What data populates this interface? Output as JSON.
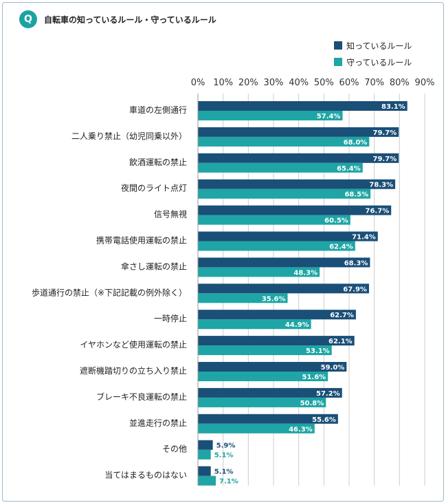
{
  "header": {
    "badge": "Q",
    "title": "自転車の知っているルール・守っているルール"
  },
  "colors": {
    "known": "#1a4f78",
    "kept": "#1fa5a5",
    "grid": "#cccccc",
    "badge": "#1aa3a3"
  },
  "chart_data": {
    "type": "bar",
    "orientation": "horizontal",
    "title": "自転車の知っているルール・守っているルール",
    "xlim": [
      0,
      90
    ],
    "ticks": [
      "0%",
      "10%",
      "20%",
      "30%",
      "40%",
      "50%",
      "60%",
      "70%",
      "80%",
      "90%"
    ],
    "grid": true,
    "legend_position": "top-right",
    "categories": [
      "車道の左側通行",
      "二人乗り禁止（幼児同乗以外）",
      "飲酒運転の禁止",
      "夜間のライト点灯",
      "信号無視",
      "携帯電話使用運転の禁止",
      "傘さし運転の禁止",
      "歩道通行の禁止（※下記記載の例外除く）",
      "一時停止",
      "イヤホンなど使用運転の禁止",
      "遮断機踏切りの立ち入り禁止",
      "ブレーキ不良運転の禁止",
      "並進走行の禁止",
      "その他",
      "当てはまるものはない"
    ],
    "series": [
      {
        "name": "知っているルール",
        "values": [
          83.1,
          79.7,
          79.7,
          78.3,
          76.7,
          71.4,
          68.3,
          67.9,
          62.7,
          62.1,
          59.0,
          57.2,
          55.6,
          5.9,
          5.1
        ],
        "labels": [
          "83.1%",
          "79.7%",
          "79.7%",
          "78.3%",
          "76.7%",
          "71.4%",
          "68.3%",
          "67.9%",
          "62.7%",
          "62.1%",
          "59.0%",
          "57.2%",
          "55.6%",
          "5.9%",
          "5.1%"
        ]
      },
      {
        "name": "守っているルール",
        "values": [
          57.4,
          68.0,
          65.4,
          68.5,
          60.5,
          62.4,
          48.3,
          35.6,
          44.9,
          53.1,
          51.6,
          50.8,
          46.3,
          5.1,
          7.1
        ],
        "labels": [
          "57.4%",
          "68.0%",
          "65.4%",
          "68.5%",
          "60.5%",
          "62.4%",
          "48.3%",
          "35.6%",
          "44.9%",
          "53.1%",
          "51.6%",
          "50.8%",
          "46.3%",
          "5.1%",
          "7.1%"
        ]
      }
    ]
  }
}
